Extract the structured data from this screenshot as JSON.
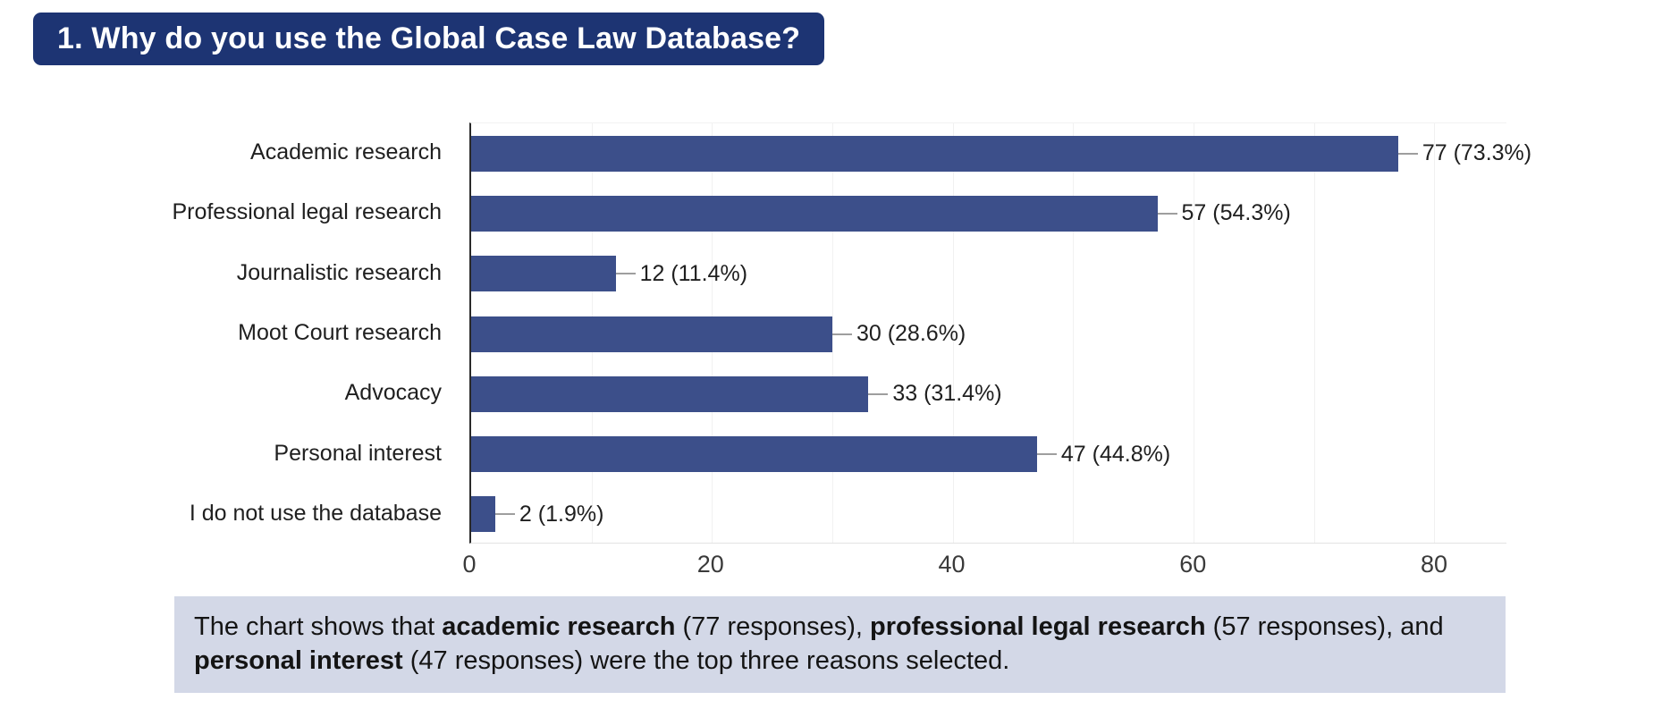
{
  "title": {
    "text": "1. Why do you use the Global Case Law Database?",
    "banner_color": "#1d3473",
    "text_color": "#ffffff"
  },
  "chart_data": {
    "type": "bar",
    "orientation": "horizontal",
    "title": "",
    "xlabel": "",
    "ylabel": "",
    "categories": [
      "Academic research",
      "Professional legal research",
      "Journalistic research",
      "Moot Court research",
      "Advocacy",
      "Personal interest",
      "I do not use the database"
    ],
    "values": [
      77,
      57,
      12,
      30,
      33,
      47,
      2
    ],
    "percentages": [
      73.3,
      54.3,
      11.4,
      28.6,
      31.4,
      44.8,
      1.9
    ],
    "value_labels": [
      "77 (73.3%)",
      "57 (54.3%)",
      "12 (11.4%)",
      "30 (28.6%)",
      "33 (31.4%)",
      "47 (44.8%)",
      "2 (1.9%)"
    ],
    "xlim": [
      0,
      86
    ],
    "x_ticks": [
      0,
      20,
      40,
      60,
      80
    ],
    "gridline_interval": 10,
    "grid": true,
    "legend": false,
    "bar_color": "#3c4f8a",
    "gridline_color": "#f1f1f1",
    "leader_line_color": "#9e9e9e"
  },
  "caption": {
    "background_color": "#d3d8e7",
    "segments": [
      {
        "text": "The chart shows that ",
        "bold": false
      },
      {
        "text": "academic research",
        "bold": true
      },
      {
        "text": " (77 responses), ",
        "bold": false
      },
      {
        "text": "professional legal research",
        "bold": true
      },
      {
        "text": " (57 responses), and ",
        "bold": false
      },
      {
        "text": "personal interest",
        "bold": true
      },
      {
        "text": " (47 responses) were the top three reasons selected.",
        "bold": false
      }
    ]
  }
}
